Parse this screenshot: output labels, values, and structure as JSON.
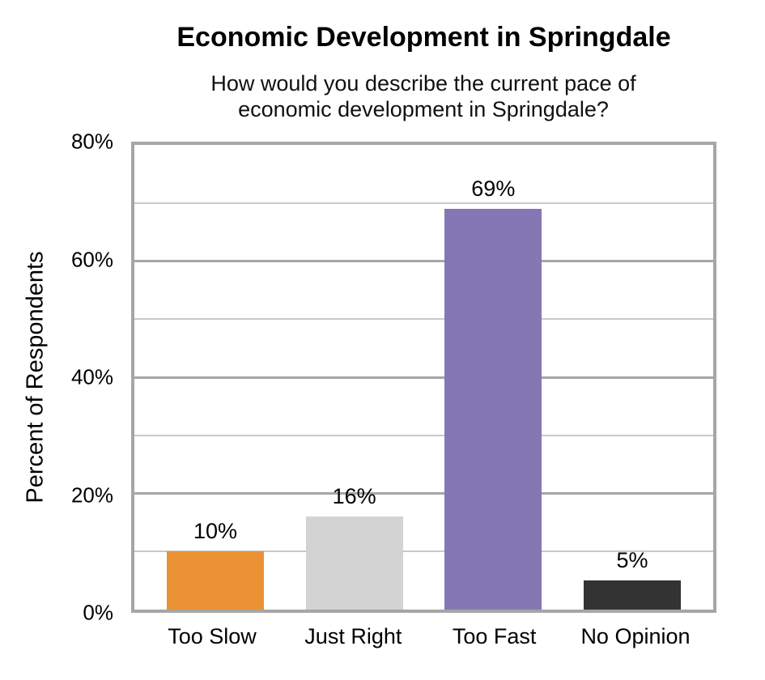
{
  "chart_data": {
    "type": "bar",
    "title": "Economic Development in Springdale",
    "subtitle": "How would you describe the current pace of economic development in Springdale?",
    "ylabel": "Percent of Respondents",
    "xlabel": "",
    "categories": [
      "Too Slow",
      "Just Right",
      "Too Fast",
      "No Opinion"
    ],
    "values": [
      10,
      16,
      69,
      5
    ],
    "data_labels": [
      "10%",
      "16%",
      "69%",
      "5%"
    ],
    "bar_colors": [
      "#EB9235",
      "#D3D3D3",
      "#8577B4",
      "#333333"
    ],
    "ylim": [
      0,
      80
    ],
    "y_major_ticks": [
      0,
      20,
      40,
      60,
      80
    ],
    "y_tick_labels": [
      "0%",
      "20%",
      "40%",
      "60%",
      "80%"
    ],
    "y_minor_ticks": [
      10,
      30,
      50,
      70
    ],
    "grid": "horizontal, major and minor lines on",
    "legend_position": "none",
    "colors": {
      "plot_border": "#A6A6A6",
      "major_gridline": "#A6A6A6",
      "minor_gridline": "#C9C9C9",
      "text": "#000000",
      "background": "#FFFFFF"
    }
  }
}
